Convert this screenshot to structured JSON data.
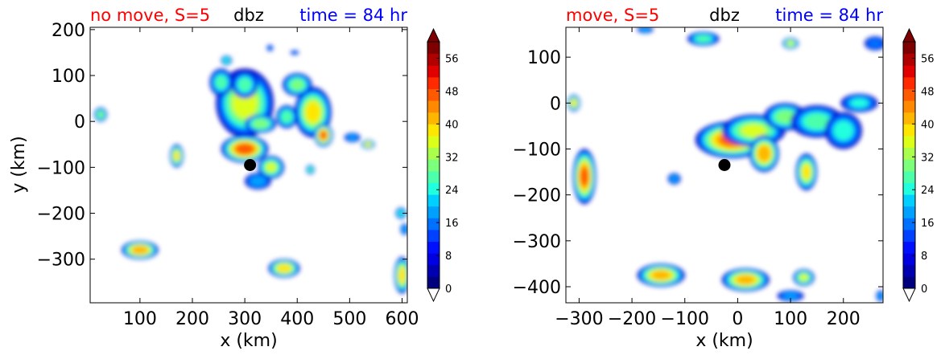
{
  "colors": {
    "title_left": "#ff0000",
    "title_center": "#000000",
    "title_right": "#0000ff",
    "dot": "#000000"
  },
  "colorbar_palette": [
    "#00007f",
    "#0000b0",
    "#0000e0",
    "#0010ff",
    "#0040ff",
    "#0070ff",
    "#00a0ff",
    "#00d0ff",
    "#20ffde",
    "#4cffaa",
    "#7cff7a",
    "#aaff4d",
    "#dcff1a",
    "#ffe600",
    "#ffb600",
    "#ff8900",
    "#ff5a00",
    "#ff2a00",
    "#e00000",
    "#b00000",
    "#7f0000"
  ],
  "chart_data": [
    {
      "type": "heatmap",
      "title_left": "no move, S=5",
      "title_center": "dbz",
      "title_right": "time = 84 hr",
      "xlabel": "x (km)",
      "ylabel": "y (km)",
      "xlim": [
        5,
        610
      ],
      "ylim": [
        -395,
        205
      ],
      "xticks": [
        100,
        200,
        300,
        400,
        500,
        600
      ],
      "yticks": [
        200,
        100,
        0,
        -100,
        -200,
        -300
      ],
      "center_marker": {
        "x": 310,
        "y": -95
      },
      "colorbar": {
        "min": 0,
        "max": 60,
        "ticks": [
          0,
          8,
          16,
          24,
          32,
          40,
          48,
          56
        ],
        "extend": "both"
      },
      "cells": [
        {
          "x": 300,
          "y": 40,
          "rx": 55,
          "ry": 75,
          "peak": 38
        },
        {
          "x": 300,
          "y": -60,
          "rx": 45,
          "ry": 30,
          "peak": 50
        },
        {
          "x": 255,
          "y": 85,
          "rx": 22,
          "ry": 30,
          "peak": 28
        },
        {
          "x": 330,
          "y": -5,
          "rx": 30,
          "ry": 20,
          "peak": 35
        },
        {
          "x": 350,
          "y": -100,
          "rx": 25,
          "ry": 25,
          "peak": 36
        },
        {
          "x": 325,
          "y": -130,
          "rx": 25,
          "ry": 18,
          "peak": 22
        },
        {
          "x": 300,
          "y": 80,
          "rx": 25,
          "ry": 30,
          "peak": 28
        },
        {
          "x": 430,
          "y": 20,
          "rx": 35,
          "ry": 55,
          "peak": 40
        },
        {
          "x": 450,
          "y": -30,
          "rx": 18,
          "ry": 25,
          "peak": 48
        },
        {
          "x": 400,
          "y": 80,
          "rx": 28,
          "ry": 25,
          "peak": 32
        },
        {
          "x": 380,
          "y": 10,
          "rx": 20,
          "ry": 25,
          "peak": 30
        },
        {
          "x": 535,
          "y": -50,
          "rx": 13,
          "ry": 10,
          "peak": 40
        },
        {
          "x": 505,
          "y": -35,
          "rx": 15,
          "ry": 10,
          "peak": 20
        },
        {
          "x": 100,
          "y": -280,
          "rx": 35,
          "ry": 20,
          "peak": 46
        },
        {
          "x": 375,
          "y": -320,
          "rx": 30,
          "ry": 20,
          "peak": 42
        },
        {
          "x": 170,
          "y": -75,
          "rx": 13,
          "ry": 25,
          "peak": 40
        },
        {
          "x": 25,
          "y": 15,
          "rx": 12,
          "ry": 15,
          "peak": 32
        },
        {
          "x": 600,
          "y": -335,
          "rx": 15,
          "ry": 40,
          "peak": 42
        },
        {
          "x": 598,
          "y": -200,
          "rx": 10,
          "ry": 12,
          "peak": 25
        },
        {
          "x": 605,
          "y": -235,
          "rx": 8,
          "ry": 12,
          "peak": 22
        },
        {
          "x": 425,
          "y": -105,
          "rx": 8,
          "ry": 10,
          "peak": 28
        },
        {
          "x": 348,
          "y": 160,
          "rx": 6,
          "ry": 7,
          "peak": 18
        },
        {
          "x": 395,
          "y": 150,
          "rx": 8,
          "ry": 5,
          "peak": 16
        },
        {
          "x": 265,
          "y": 133,
          "rx": 10,
          "ry": 10,
          "peak": 26
        }
      ]
    },
    {
      "type": "heatmap",
      "title_left": "move, S=5",
      "title_center": "dbz",
      "title_right": "time = 84 hr",
      "xlabel": "x (km)",
      "ylabel": "",
      "xlim": [
        -325,
        275
      ],
      "ylim": [
        -435,
        165
      ],
      "xticks": [
        -300,
        -200,
        -100,
        0,
        100,
        200
      ],
      "yticks": [
        100,
        0,
        -100,
        -200,
        -300,
        -400
      ],
      "center_marker": {
        "x": -25,
        "y": -135
      },
      "colorbar": {
        "min": 0,
        "max": 60,
        "ticks": [
          0,
          8,
          16,
          24,
          32,
          40,
          48,
          56
        ],
        "extend": "both"
      },
      "cells": [
        {
          "x": -10,
          "y": -80,
          "rx": 70,
          "ry": 40,
          "peak": 48
        },
        {
          "x": 30,
          "y": -60,
          "rx": 60,
          "ry": 35,
          "peak": 36
        },
        {
          "x": 50,
          "y": -110,
          "rx": 28,
          "ry": 40,
          "peak": 46
        },
        {
          "x": 90,
          "y": -30,
          "rx": 40,
          "ry": 30,
          "peak": 32
        },
        {
          "x": 150,
          "y": -40,
          "rx": 50,
          "ry": 35,
          "peak": 28
        },
        {
          "x": 200,
          "y": -60,
          "rx": 35,
          "ry": 40,
          "peak": 26
        },
        {
          "x": 230,
          "y": 0,
          "rx": 35,
          "ry": 20,
          "peak": 24
        },
        {
          "x": 130,
          "y": -150,
          "rx": 20,
          "ry": 40,
          "peak": 40
        },
        {
          "x": -290,
          "y": -160,
          "rx": 22,
          "ry": 60,
          "peak": 48
        },
        {
          "x": -145,
          "y": -375,
          "rx": 45,
          "ry": 25,
          "peak": 44
        },
        {
          "x": 15,
          "y": -385,
          "rx": 45,
          "ry": 25,
          "peak": 44
        },
        {
          "x": 125,
          "y": -380,
          "rx": 20,
          "ry": 18,
          "peak": 36
        },
        {
          "x": 100,
          "y": -420,
          "rx": 25,
          "ry": 12,
          "peak": 20
        },
        {
          "x": -310,
          "y": 0,
          "rx": 12,
          "ry": 18,
          "peak": 40
        },
        {
          "x": -65,
          "y": 140,
          "rx": 30,
          "ry": 15,
          "peak": 28
        },
        {
          "x": 100,
          "y": 130,
          "rx": 15,
          "ry": 12,
          "peak": 36
        },
        {
          "x": -120,
          "y": -165,
          "rx": 12,
          "ry": 12,
          "peak": 20
        },
        {
          "x": -175,
          "y": 160,
          "rx": 15,
          "ry": 8,
          "peak": 22
        },
        {
          "x": 260,
          "y": 130,
          "rx": 20,
          "ry": 15,
          "peak": 18
        },
        {
          "x": 270,
          "y": -420,
          "rx": 8,
          "ry": 12,
          "peak": 20
        }
      ]
    }
  ]
}
